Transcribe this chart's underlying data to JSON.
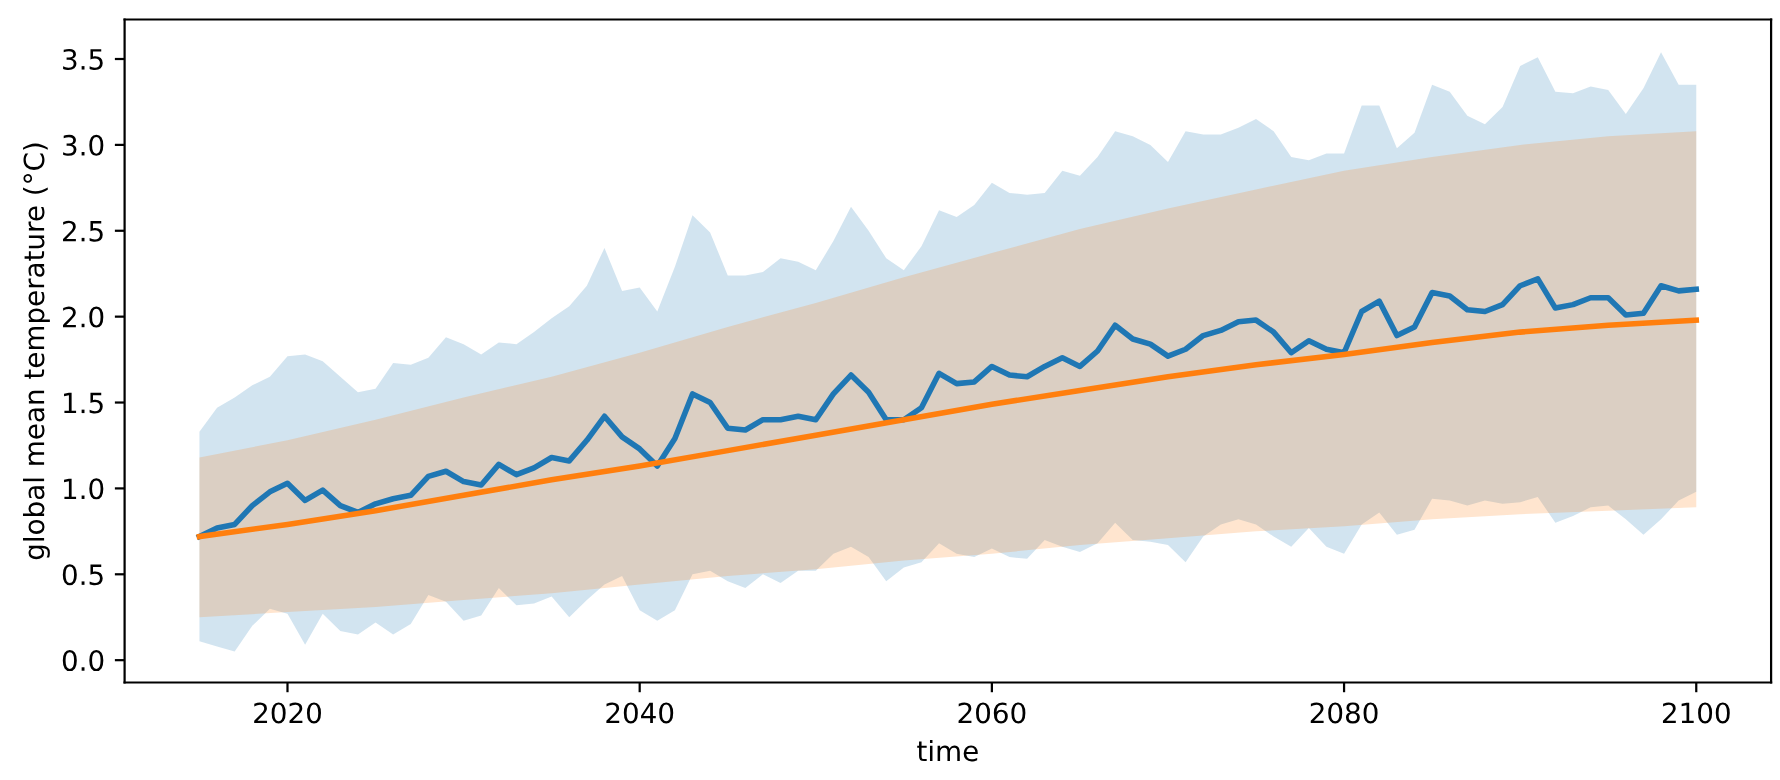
{
  "chart_data": {
    "type": "line",
    "xlabel": "time",
    "ylabel": "global mean temperature (°C)",
    "xlim": [
      2010.75,
      2104.25
    ],
    "xticks": [
      2020,
      2040,
      2060,
      2080,
      2100
    ],
    "ylim": [
      -0.13,
      3.73
    ],
    "yticks": [
      {
        "value": 0,
        "label": "0.0"
      },
      0.5,
      {
        "value": 1,
        "label": "1.0"
      },
      1.5,
      {
        "value": 2,
        "label": "2.0"
      },
      2.5,
      {
        "value": 3,
        "label": "3.0"
      },
      3.5
    ],
    "grid": false,
    "series": [
      {
        "color": "#1f77b4",
        "x": [
          2015,
          2016,
          2017,
          2018,
          2019,
          2020,
          2021,
          2022,
          2023,
          2024,
          2025,
          2026,
          2027,
          2028,
          2029,
          2030,
          2031,
          2032,
          2033,
          2034,
          2035,
          2036,
          2037,
          2038,
          2039,
          2040,
          2041,
          2042,
          2043,
          2044,
          2045,
          2046,
          2047,
          2048,
          2049,
          2050,
          2051,
          2052,
          2053,
          2054,
          2055,
          2056,
          2057,
          2058,
          2059,
          2060,
          2061,
          2062,
          2063,
          2064,
          2065,
          2066,
          2067,
          2068,
          2069,
          2070,
          2071,
          2072,
          2073,
          2074,
          2075,
          2076,
          2077,
          2078,
          2079,
          2080,
          2081,
          2082,
          2083,
          2084,
          2085,
          2086,
          2087,
          2088,
          2089,
          2090,
          2091,
          2092,
          2093,
          2094,
          2095,
          2096,
          2097,
          2098,
          2099,
          2100
        ],
        "values": [
          0.72,
          0.77,
          0.79,
          0.9,
          0.98,
          1.03,
          0.93,
          0.99,
          0.9,
          0.86,
          0.91,
          0.94,
          0.96,
          1.07,
          1.1,
          1.04,
          1.02,
          1.14,
          1.08,
          1.12,
          1.18,
          1.16,
          1.28,
          1.42,
          1.3,
          1.23,
          1.13,
          1.29,
          1.55,
          1.5,
          1.35,
          1.34,
          1.4,
          1.4,
          1.42,
          1.4,
          1.55,
          1.66,
          1.56,
          1.4,
          1.4,
          1.47,
          1.67,
          1.61,
          1.62,
          1.71,
          1.66,
          1.65,
          1.71,
          1.76,
          1.71,
          1.8,
          1.95,
          1.87,
          1.84,
          1.77,
          1.81,
          1.89,
          1.92,
          1.97,
          1.98,
          1.91,
          1.79,
          1.86,
          1.81,
          1.79,
          2.03,
          2.09,
          1.89,
          1.94,
          2.14,
          2.12,
          2.04,
          2.03,
          2.07,
          2.18,
          2.22,
          2.05,
          2.07,
          2.11,
          2.11,
          2.01,
          2.02,
          2.18,
          2.15,
          2.16
        ],
        "upper": [
          1.33,
          1.47,
          1.53,
          1.6,
          1.65,
          1.77,
          1.78,
          1.74,
          1.65,
          1.56,
          1.58,
          1.73,
          1.72,
          1.76,
          1.88,
          1.84,
          1.78,
          1.85,
          1.84,
          1.91,
          1.99,
          2.06,
          2.18,
          2.4,
          2.15,
          2.17,
          2.03,
          2.29,
          2.59,
          2.49,
          2.24,
          2.24,
          2.26,
          2.34,
          2.32,
          2.27,
          2.44,
          2.64,
          2.5,
          2.34,
          2.27,
          2.41,
          2.62,
          2.58,
          2.65,
          2.78,
          2.72,
          2.71,
          2.72,
          2.85,
          2.82,
          2.93,
          3.08,
          3.05,
          3.0,
          2.9,
          3.08,
          3.06,
          3.06,
          3.1,
          3.15,
          3.08,
          2.93,
          2.91,
          2.95,
          2.95,
          3.23,
          3.23,
          2.98,
          3.07,
          3.35,
          3.31,
          3.17,
          3.12,
          3.22,
          3.46,
          3.51,
          3.31,
          3.3,
          3.34,
          3.32,
          3.18,
          3.33,
          3.54,
          3.35,
          3.35
        ],
        "lower": [
          0.11,
          0.08,
          0.05,
          0.2,
          0.3,
          0.27,
          0.09,
          0.27,
          0.17,
          0.15,
          0.22,
          0.15,
          0.21,
          0.38,
          0.34,
          0.23,
          0.26,
          0.42,
          0.32,
          0.33,
          0.37,
          0.25,
          0.35,
          0.44,
          0.49,
          0.29,
          0.23,
          0.29,
          0.5,
          0.52,
          0.46,
          0.42,
          0.5,
          0.45,
          0.52,
          0.52,
          0.62,
          0.66,
          0.6,
          0.46,
          0.54,
          0.57,
          0.68,
          0.62,
          0.6,
          0.65,
          0.6,
          0.59,
          0.7,
          0.66,
          0.63,
          0.68,
          0.8,
          0.7,
          0.69,
          0.67,
          0.57,
          0.72,
          0.79,
          0.82,
          0.79,
          0.72,
          0.66,
          0.77,
          0.66,
          0.62,
          0.79,
          0.86,
          0.73,
          0.76,
          0.94,
          0.93,
          0.9,
          0.93,
          0.91,
          0.92,
          0.95,
          0.8,
          0.84,
          0.89,
          0.9,
          0.82,
          0.73,
          0.82,
          0.93,
          0.98
        ]
      },
      {
        "color": "#ff7f0e",
        "x": [
          2015,
          2020,
          2025,
          2030,
          2035,
          2040,
          2045,
          2050,
          2055,
          2060,
          2065,
          2070,
          2075,
          2080,
          2085,
          2090,
          2095,
          2100
        ],
        "values": [
          0.72,
          0.79,
          0.87,
          0.96,
          1.05,
          1.13,
          1.22,
          1.31,
          1.4,
          1.49,
          1.57,
          1.65,
          1.72,
          1.78,
          1.85,
          1.91,
          1.95,
          1.98
        ],
        "upper": [
          1.18,
          1.28,
          1.4,
          1.53,
          1.65,
          1.79,
          1.94,
          2.08,
          2.23,
          2.37,
          2.51,
          2.63,
          2.74,
          2.85,
          2.93,
          3.0,
          3.05,
          3.08
        ],
        "lower": [
          0.25,
          0.28,
          0.31,
          0.35,
          0.39,
          0.44,
          0.49,
          0.53,
          0.58,
          0.62,
          0.67,
          0.71,
          0.75,
          0.78,
          0.82,
          0.85,
          0.87,
          0.89
        ]
      }
    ]
  }
}
